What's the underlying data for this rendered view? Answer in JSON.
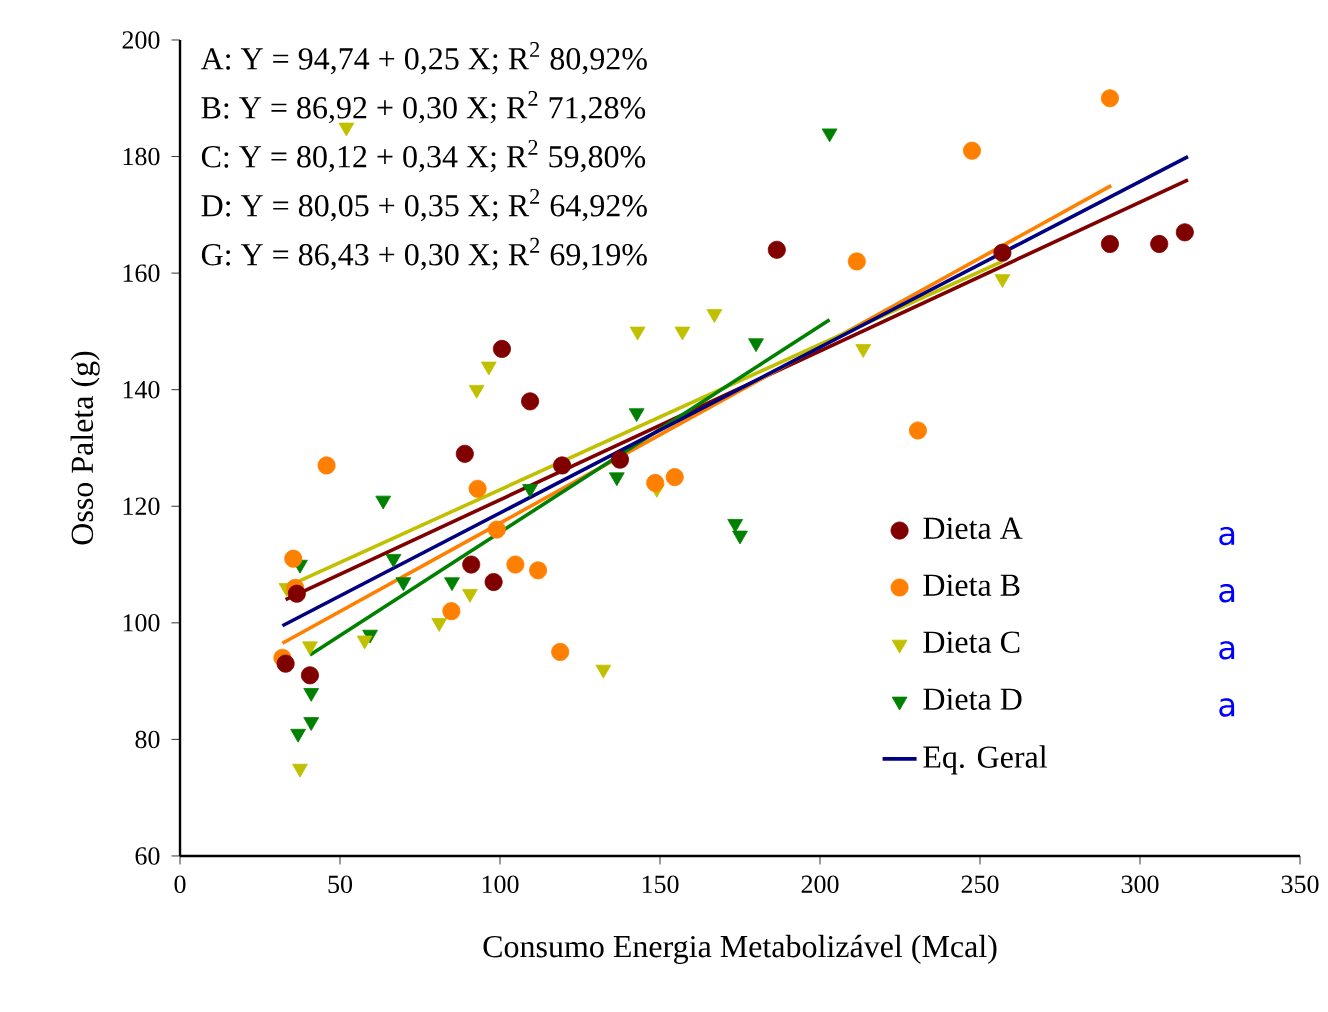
{
  "chart_data": {
    "type": "scatter",
    "xlabel": "Consumo Energia Metabolizável (Mcal)",
    "ylabel": "Osso Paleta (g)",
    "xlim": [
      0,
      350
    ],
    "ylim": [
      60,
      200
    ],
    "xticks": [
      0,
      50,
      100,
      150,
      200,
      250,
      300,
      350
    ],
    "yticks": [
      60,
      80,
      100,
      120,
      140,
      160,
      180,
      200
    ],
    "legend": "bottom right",
    "annotations": [
      "A: Y = 94,74 + 0,25 X; R$^{2}$ 80,92%",
      "B: Y = 86,92 + 0,30 X; R$^{2}$ 71,28%",
      "C: Y = 80,12 + 0,34 X; R$^{2}$ 59,80%",
      "D: Y = 80,05 + 0,35 X; R$^{2}$ 64,92%",
      "G: Y = 86,43 + 0,30 X; R$^{2}$ 69,19%",
      "a",
      "a",
      "a",
      "a"
    ],
    "series": [
      {
        "name": "Dieta A",
        "color": "#800000",
        "marker": "circle",
        "x": [
          36.5,
          33,
          40.6,
          89,
          91,
          98,
          119.4,
          137.5,
          100.6,
          109.4,
          186.5,
          257,
          290.6,
          306,
          314
        ],
        "values": [
          105,
          93,
          91,
          129,
          110,
          107,
          127,
          128,
          147,
          138,
          164,
          163.5,
          165,
          165,
          167
        ]
      },
      {
        "name": "Dieta B",
        "color": "#ff8000",
        "marker": "circle",
        "x": [
          35.4,
          36,
          32,
          45.8,
          93,
          99,
          84.8,
          104.8,
          111.9,
          118.8,
          148.5,
          154.6,
          211.5,
          247.5,
          290.6,
          230.6
        ],
        "values": [
          111,
          106,
          94,
          127,
          123,
          116,
          102,
          110,
          109,
          95,
          124,
          125,
          162,
          181,
          190,
          133
        ]
      },
      {
        "name": "Dieta C",
        "color": "#c0c000",
        "marker": "triangle",
        "x": [
          52,
          96.5,
          92.7,
          143,
          157,
          167,
          33.3,
          40.6,
          37.5,
          57.7,
          81,
          90.6,
          132.3,
          149,
          213.5,
          257
        ],
        "values": [
          185,
          144,
          140,
          150,
          150,
          153,
          106,
          96,
          75,
          97,
          100,
          105,
          92,
          123,
          147,
          159
        ]
      },
      {
        "name": "Dieta D",
        "color": "#008000",
        "marker": "triangle",
        "x": [
          180,
          142.7,
          203,
          63.5,
          66.7,
          69.8,
          109.4,
          136.5,
          85,
          59.4,
          37.5,
          41,
          41,
          36.9,
          173.5,
          175
        ],
        "values": [
          148,
          136,
          184,
          121,
          111,
          107,
          123,
          125,
          107,
          98,
          110,
          88,
          83,
          81,
          117,
          115
        ]
      },
      {
        "type": "line",
        "color": "#800000",
        "x": [
          33,
          315
        ],
        "values": [
          104,
          176
        ]
      },
      {
        "type": "line",
        "color": "#ff8000",
        "x": [
          32,
          291
        ],
        "values": [
          96.5,
          175
        ]
      },
      {
        "type": "line",
        "color": "#c0c000",
        "x": [
          36.5,
          257
        ],
        "values": [
          107,
          162
        ]
      },
      {
        "type": "line",
        "color": "#008000",
        "x": [
          40.6,
          203
        ],
        "values": [
          94.5,
          152
        ]
      },
      {
        "name": "Eq. Geral",
        "type": "line",
        "color": "#000080",
        "x": [
          32,
          315
        ],
        "values": [
          99.5,
          180
        ]
      }
    ]
  }
}
